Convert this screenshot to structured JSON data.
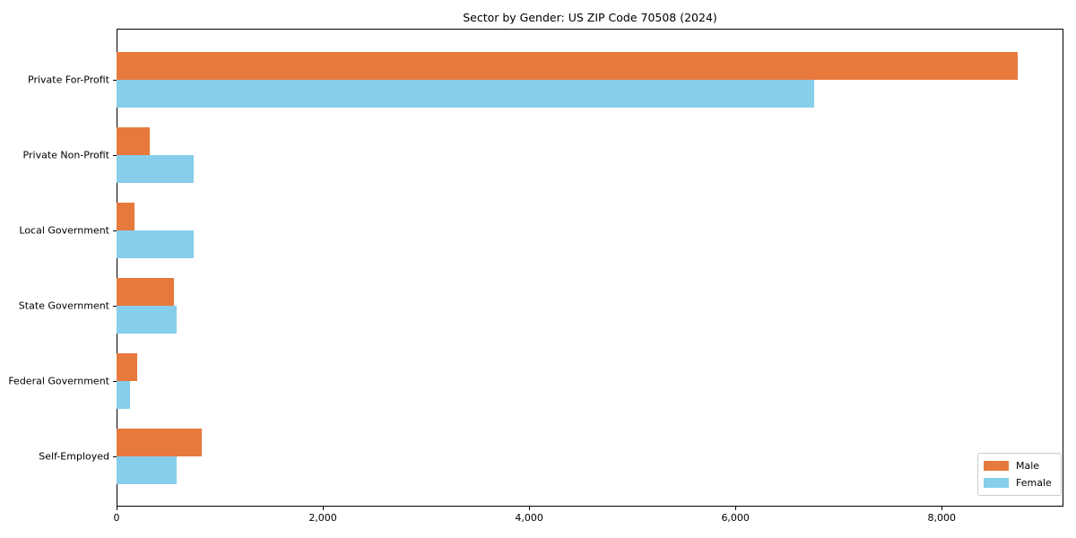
{
  "chart_data": {
    "type": "bar",
    "orientation": "horizontal",
    "title": "Sector by Gender: US ZIP Code 70508 (2024)",
    "categories": [
      "Private For-Profit",
      "Private Non-Profit",
      "Local Government",
      "State Government",
      "Federal Government",
      "Self-Employed"
    ],
    "series": [
      {
        "name": "Male",
        "color": "#e8793d",
        "values": [
          8740,
          320,
          175,
          555,
          200,
          825
        ]
      },
      {
        "name": "Female",
        "color": "#87ceeb",
        "values": [
          6760,
          750,
          745,
          580,
          130,
          580
        ]
      }
    ],
    "xlabel": "",
    "ylabel": "",
    "xlim": [
      0,
      9180
    ],
    "xticks": [
      0,
      2000,
      4000,
      6000,
      8000
    ],
    "xtick_labels": [
      "0",
      "2,000",
      "4,000",
      "6,000",
      "8,000"
    ],
    "grid": false,
    "legend_position": "lower right",
    "axis_color": "#000000",
    "background_color": "#ffffff"
  }
}
